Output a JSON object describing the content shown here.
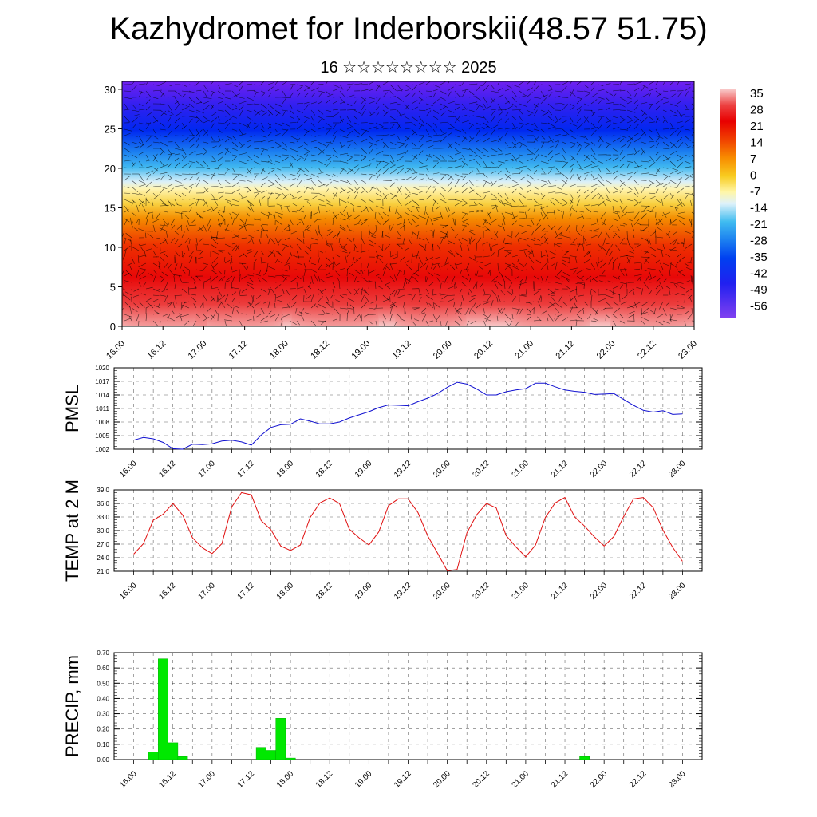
{
  "header": {
    "title": "Kazhydromet for Inderborskii(48.57 51.75)",
    "subtitle": "16 ☆☆☆☆☆☆☆☆ 2025"
  },
  "time_labels": [
    "16.00",
    "16.12",
    "17.00",
    "17.12",
    "18.00",
    "18.12",
    "19.00",
    "19.12",
    "20.00",
    "20.12",
    "21.00",
    "21.12",
    "22.00",
    "22.12",
    "23.00"
  ],
  "chart_data": [
    {
      "type": "heatmap",
      "name_hint": "temperature cross-section with wind barbs",
      "xticks": [
        "16.00",
        "16.12",
        "17.00",
        "17.12",
        "18.00",
        "18.12",
        "19.00",
        "19.12",
        "20.00",
        "20.12",
        "21.00",
        "21.12",
        "22.00",
        "22.12",
        "23.00"
      ],
      "yticks": [
        0,
        5,
        10,
        15,
        20,
        25,
        30
      ],
      "ylim": [
        0,
        31
      ],
      "colorbar_labels": [
        "35",
        "28",
        "21",
        "14",
        "7",
        "0",
        "-7",
        "-14",
        "-21",
        "-28",
        "-35",
        "-42",
        "-49",
        "-56"
      ],
      "colorbar_colors": [
        "#f4c2c2",
        "#e83030",
        "#e80000",
        "#f05000",
        "#f89000",
        "#f8d000",
        "#fff8a0",
        "#d0f0f8",
        "#40c0f0",
        "#2080f0",
        "#0040f0",
        "#2020f0",
        "#6020f0",
        "#8040f0"
      ]
    },
    {
      "type": "line",
      "ylabel": "PMSL",
      "ylim": [
        1002,
        1020
      ],
      "yticks": [
        "1002",
        "1005",
        "1008",
        "1011",
        "1014",
        "1017",
        "1020"
      ],
      "xticks": [
        "16.00",
        "16.12",
        "17.00",
        "17.12",
        "18.00",
        "18.12",
        "19.00",
        "19.12",
        "20.00",
        "20.12",
        "21.00",
        "21.12",
        "22.00",
        "22.12",
        "23.00"
      ],
      "color": "#1010d0",
      "x": [
        0,
        3,
        6,
        9,
        12,
        15,
        18,
        21,
        24,
        27,
        30,
        33,
        36,
        39,
        42,
        45,
        48,
        51,
        54,
        57,
        60,
        63,
        66,
        69,
        72,
        75,
        78,
        81,
        84,
        87,
        90,
        93,
        96,
        99,
        102,
        105,
        108,
        111,
        114,
        117,
        120,
        123,
        126,
        129,
        132,
        135,
        138,
        141,
        144,
        147,
        150,
        153,
        156,
        159,
        162,
        165,
        168
      ],
      "values": [
        1004.0,
        1004.6,
        1004.3,
        1003.5,
        1002.1,
        1002.0,
        1003.1,
        1003.0,
        1003.2,
        1003.8,
        1004.0,
        1003.6,
        1002.9,
        1005.1,
        1006.8,
        1007.4,
        1007.5,
        1008.7,
        1008.2,
        1007.6,
        1007.6,
        1008.0,
        1008.9,
        1009.6,
        1010.3,
        1011.2,
        1011.8,
        1011.7,
        1011.6,
        1012.5,
        1013.3,
        1014.3,
        1015.7,
        1016.8,
        1016.4,
        1015.3,
        1014.0,
        1014.0,
        1014.7,
        1015.1,
        1015.4,
        1016.6,
        1016.6,
        1015.8,
        1015.1,
        1014.8,
        1014.6,
        1014.1,
        1014.2,
        1014.3,
        1013.0,
        1011.7,
        1010.6,
        1010.2,
        1010.5,
        1009.7,
        1009.8
      ]
    },
    {
      "type": "line",
      "ylabel": "TEMP at 2 M",
      "ylim": [
        21,
        39
      ],
      "yticks": [
        "21.0",
        "24.0",
        "27.0",
        "30.0",
        "33.0",
        "36.0",
        "39.0"
      ],
      "xticks": [
        "16.00",
        "16.12",
        "17.00",
        "17.12",
        "18.00",
        "18.12",
        "19.00",
        "19.12",
        "20.00",
        "20.12",
        "21.00",
        "21.12",
        "22.00",
        "22.12",
        "23.00"
      ],
      "color": "#e01010",
      "x": [
        0,
        3,
        6,
        9,
        12,
        15,
        18,
        21,
        24,
        27,
        30,
        33,
        36,
        39,
        42,
        45,
        48,
        51,
        54,
        57,
        60,
        63,
        66,
        69,
        72,
        75,
        78,
        81,
        84,
        87,
        90,
        93,
        96,
        99,
        102,
        105,
        108,
        111,
        114,
        117,
        120,
        123,
        126,
        129,
        132,
        135,
        138,
        141,
        144,
        147,
        150,
        153,
        156,
        159,
        162,
        165,
        168
      ],
      "values": [
        24.8,
        27.1,
        32.3,
        33.6,
        36.0,
        33.4,
        28.4,
        26.2,
        24.9,
        27.1,
        35.2,
        38.4,
        37.9,
        32.2,
        30.2,
        26.6,
        25.6,
        26.8,
        32.9,
        36.1,
        37.2,
        36.0,
        30.3,
        28.4,
        26.8,
        29.7,
        35.5,
        37.0,
        37.0,
        34.0,
        28.8,
        25.0,
        21.1,
        21.4,
        29.5,
        33.5,
        36.0,
        35.0,
        28.9,
        26.4,
        24.2,
        26.8,
        32.9,
        36.1,
        37.3,
        33.0,
        31.0,
        28.6,
        26.6,
        28.7,
        33.1,
        37.0,
        37.3,
        35.1,
        30.1,
        26.3,
        23.2
      ]
    },
    {
      "type": "bar",
      "ylabel": "PRECIP, mm",
      "ylim": [
        0,
        0.7
      ],
      "yticks": [
        "0.00",
        "0.10",
        "0.20",
        "0.30",
        "0.40",
        "0.50",
        "0.60",
        "0.70"
      ],
      "xticks": [
        "16.00",
        "16.12",
        "17.00",
        "17.12",
        "18.00",
        "18.12",
        "19.00",
        "19.12",
        "20.00",
        "20.12",
        "21.00",
        "21.12",
        "22.00",
        "22.12",
        "23.00"
      ],
      "color": "#00e800",
      "bar_width_hours": 3,
      "x": [
        6,
        9,
        12,
        15,
        39,
        42,
        45,
        48,
        138
      ],
      "values": [
        0.05,
        0.66,
        0.11,
        0.02,
        0.08,
        0.06,
        0.27,
        0.01,
        0.02
      ]
    }
  ]
}
